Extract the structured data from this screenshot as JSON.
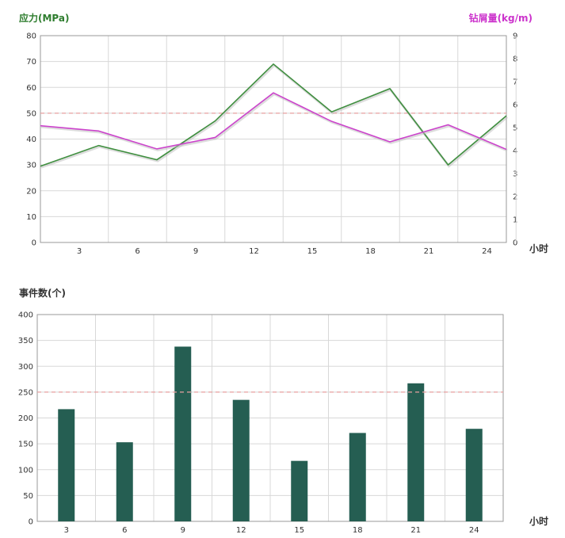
{
  "colors": {
    "stress": "#3f8f3f",
    "drill": "#cc44cc",
    "bar": "#255e52",
    "threshold": "#e8a0a0",
    "grid": "#d8d8d8",
    "axis": "#999999"
  },
  "chart_data": [
    {
      "type": "line",
      "x_label": "小时",
      "y_left_label": "应力(MPa)",
      "y_right_label": "钻屑量(kg/m)",
      "x_ticks": [
        "3",
        "6",
        "9",
        "12",
        "15",
        "18",
        "21",
        "24"
      ],
      "y_left_ticks": [
        "0",
        "10",
        "20",
        "30",
        "40",
        "50",
        "60",
        "70",
        "80"
      ],
      "y_right_ticks": [
        "0",
        "1",
        "2",
        "3",
        "4",
        "5",
        "6",
        "7",
        "8",
        "9"
      ],
      "y_left_range": [
        0,
        80
      ],
      "y_right_range": [
        0,
        9
      ],
      "x_range": [
        1,
        25
      ],
      "threshold_left": 50,
      "grid": true,
      "series": [
        {
          "axis": "left",
          "x": [
            1,
            4,
            7,
            10,
            13,
            16,
            19,
            22,
            25
          ],
          "values": [
            29.5,
            37.5,
            32,
            47,
            69,
            50.5,
            59.5,
            30,
            49
          ]
        },
        {
          "axis": "right",
          "x": [
            1,
            4,
            7,
            10,
            13,
            16,
            19,
            22,
            25
          ],
          "values": [
            5.08,
            4.85,
            4.07,
            4.57,
            6.51,
            5.27,
            4.38,
            5.12,
            4.05
          ]
        }
      ]
    },
    {
      "type": "bar",
      "x_label": "小时",
      "y_label": "事件数(个)",
      "categories": [
        "3",
        "6",
        "9",
        "12",
        "15",
        "18",
        "21",
        "24"
      ],
      "values": [
        217,
        153,
        338,
        235,
        117,
        171,
        267,
        179
      ],
      "y_ticks": [
        "0",
        "50",
        "100",
        "150",
        "200",
        "250",
        "300",
        "350",
        "400"
      ],
      "y_range": [
        0,
        400
      ],
      "threshold": 250,
      "grid": true
    }
  ]
}
